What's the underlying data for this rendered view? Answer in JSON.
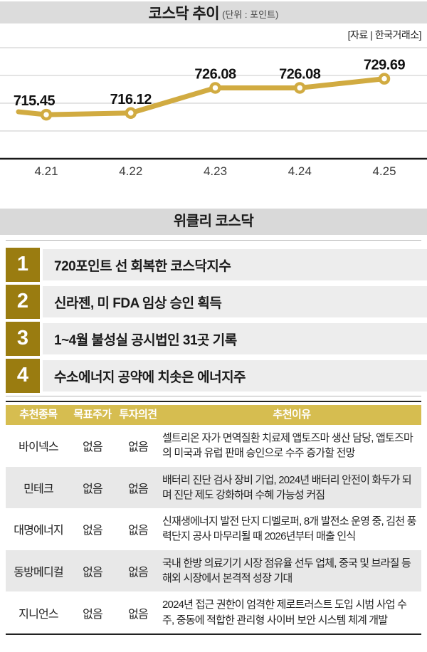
{
  "header": {
    "title": "코스닥 추이",
    "unit": "(단위 : 포인트)",
    "source": "[자료 | 한국거래소]"
  },
  "chart_data": {
    "type": "line",
    "title": "코스닥 추이",
    "unit": "포인트",
    "categories": [
      "4.21",
      "4.22",
      "4.23",
      "4.24",
      "4.25"
    ],
    "values": [
      715.45,
      716.12,
      726.08,
      726.08,
      729.69
    ],
    "labels": [
      "715.45",
      "716.12",
      "726.08",
      "726.08",
      "729.69"
    ],
    "lead_in_value": 716.6,
    "ylim": [
      698,
      742
    ],
    "grid": true,
    "line_color": "#d1ab41",
    "marker": "circle-open",
    "source": "한국거래소"
  },
  "weekly": {
    "title": "위클리 코스닥",
    "items": [
      {
        "num": "1",
        "text": "720포인트 선 회복한 코스닥지수"
      },
      {
        "num": "2",
        "text": "신라젠, 미 FDA 임상 승인 획득"
      },
      {
        "num": "3",
        "text": "1~4월 불성실 공시법인 31곳 기록"
      },
      {
        "num": "4",
        "text": "수소에너지 공약에 치솟은 에너지주"
      }
    ]
  },
  "table": {
    "headers": [
      "추천종목",
      "목표주가",
      "투자의견",
      "추천이유"
    ],
    "rows": [
      {
        "name": "바이넥스",
        "target": "없음",
        "opinion": "없음",
        "reason": "셀트리온 자가 면역질환 치료제 앱토즈마 생산 담당, 앱토즈마의 미국과 유럽 판매 승인으로 수주 증가할 전망"
      },
      {
        "name": "민테크",
        "target": "없음",
        "opinion": "없음",
        "reason": "배터리 진단 검사 장비 기업, 2024년 배터리 안전이 화두가 되며 진단 제도 강화하며 수혜 가능성 커짐"
      },
      {
        "name": "대명에너지",
        "target": "없음",
        "opinion": "없음",
        "reason": "신재생에너지 발전 단지 디벨로퍼, 8개 발전소 운영 중, 김천 풍력단지 공사 마무리될 때 2026년부터 매출 인식"
      },
      {
        "name": "동방메디컬",
        "target": "없음",
        "opinion": "없음",
        "reason": "국내 한방 의료기기 시장 점유율 선두 업체, 중국 및 브라질 등 해외 시장에서 본격적 성장 기대"
      },
      {
        "name": "지니언스",
        "target": "없음",
        "opinion": "없음",
        "reason": "2024년 접근 권한이 엄격한 제로트러스트 도입 시범 사업 수주, 중동에 적합한 관리형 사이버 보안 시스템 체계 개발"
      }
    ]
  },
  "colors": {
    "line_gold": "#d1ab41",
    "badge_gold": "#9a7c10",
    "table_header_gold": "#d6bd50",
    "title_bar_gray": "#dcdcdc",
    "item_row_gray": "#ededed",
    "table_row_gray": "#e8e8e8"
  }
}
